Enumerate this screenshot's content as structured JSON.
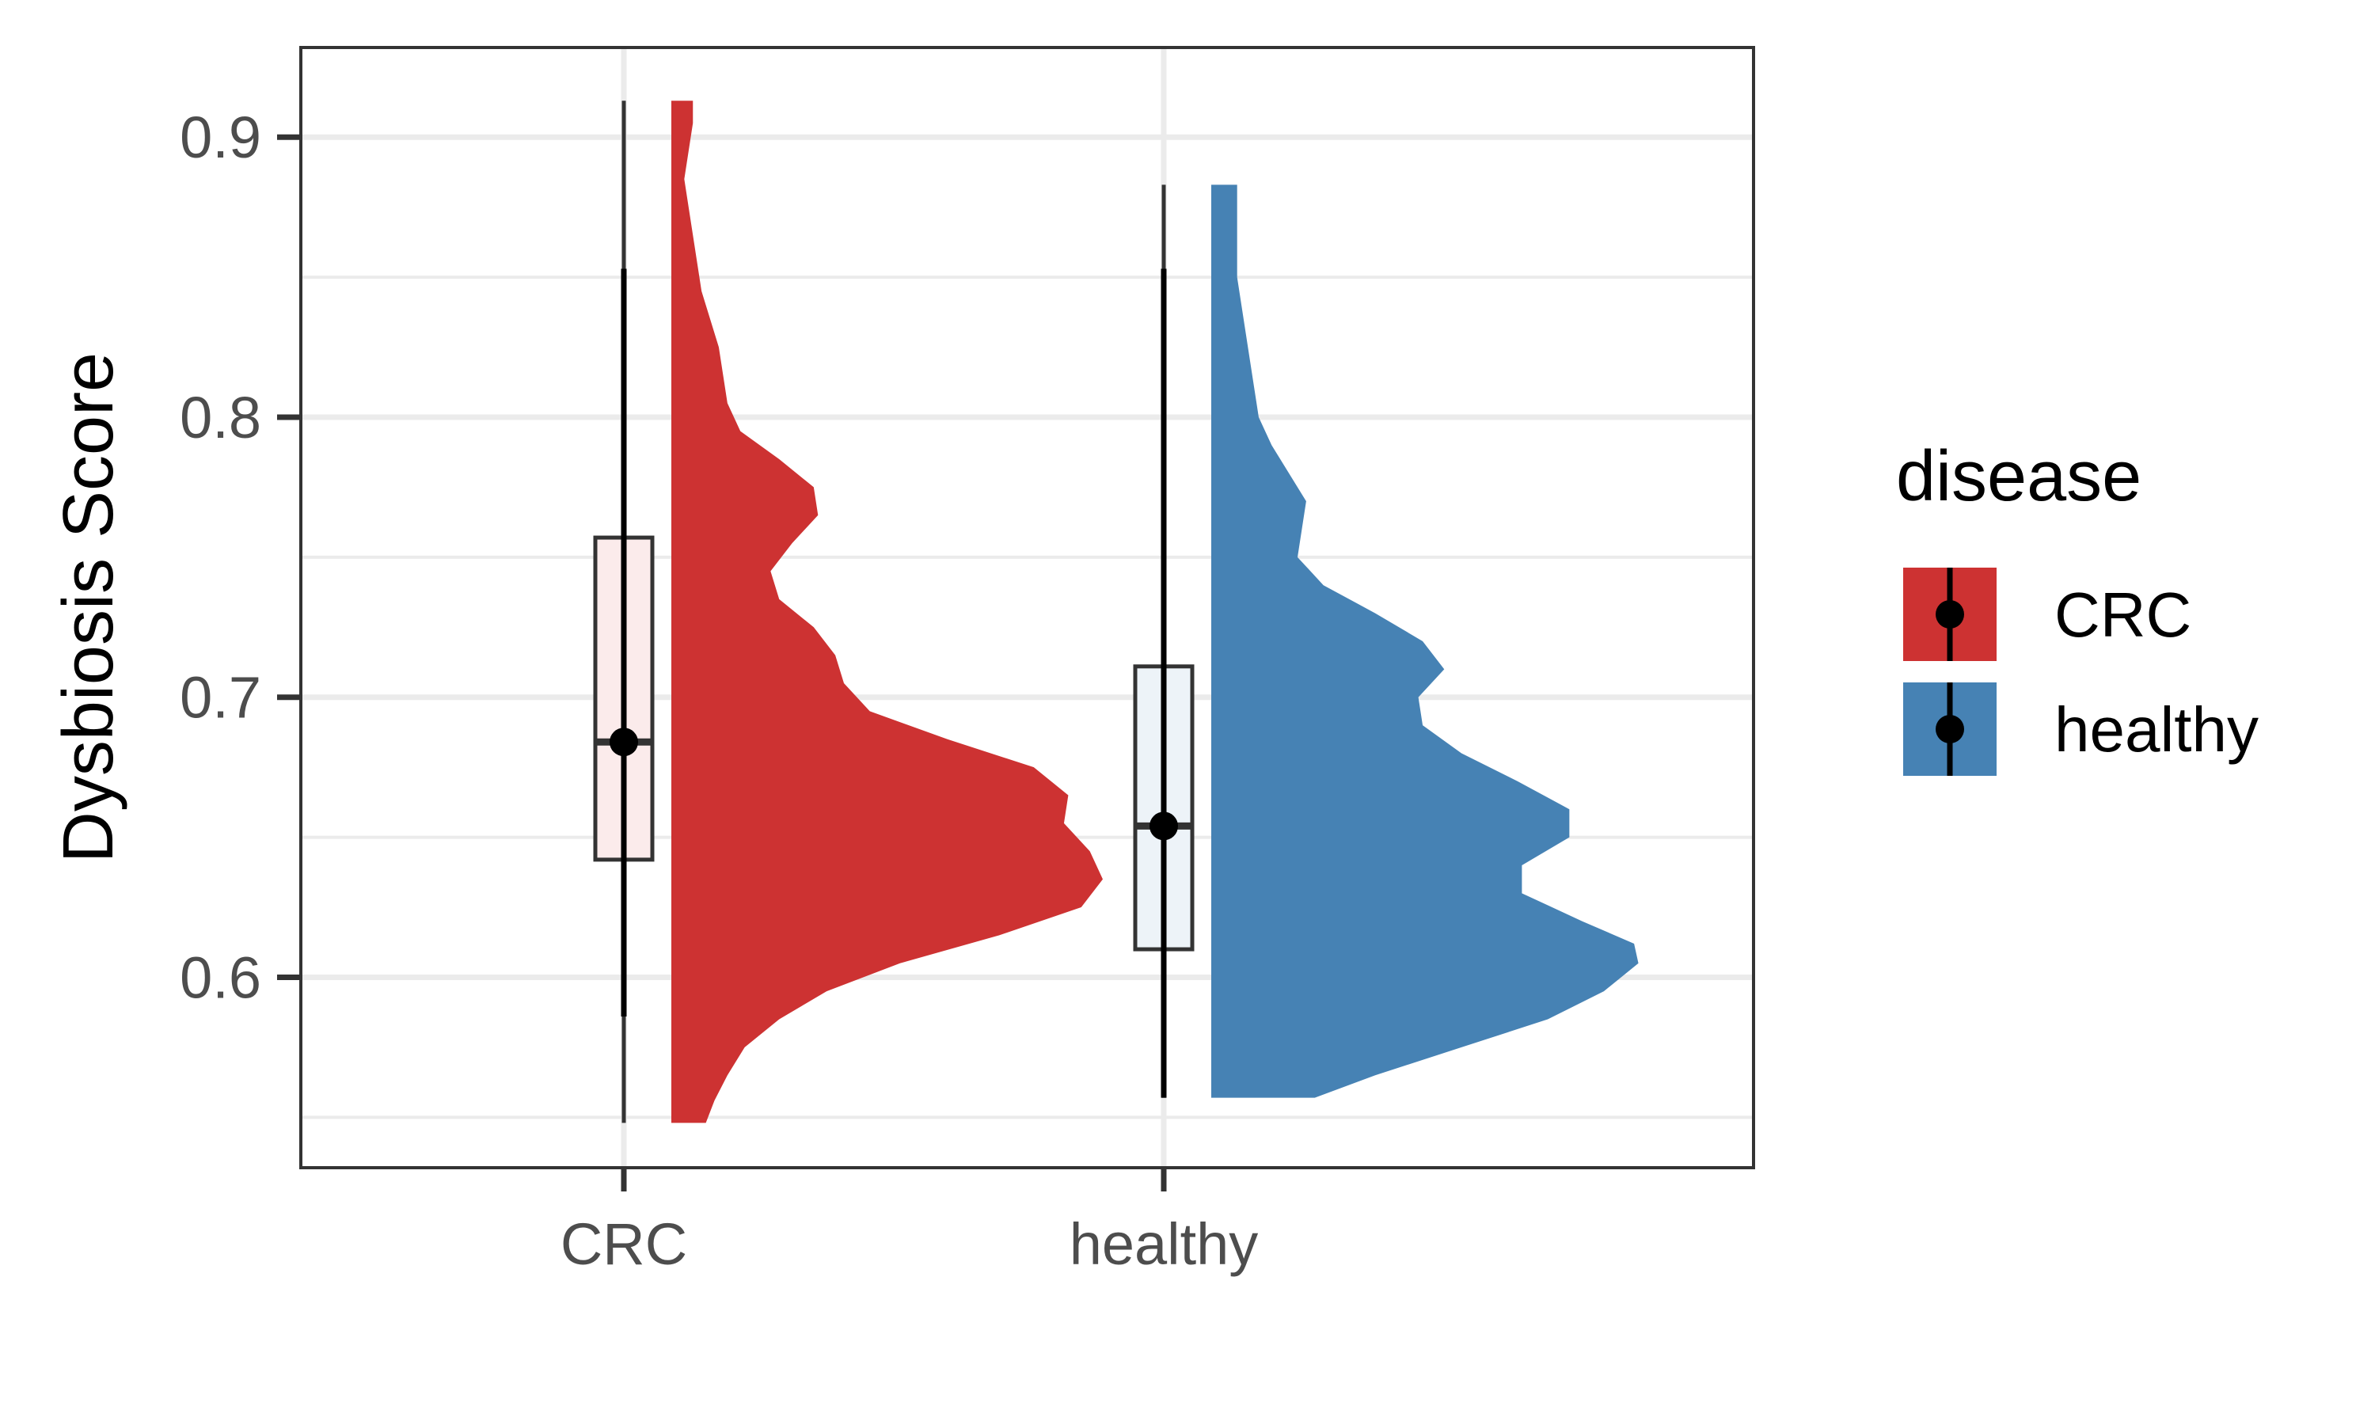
{
  "chart_data": {
    "type": "violin",
    "variant": "raincloud: half-violin density with boxplot and point-range",
    "xlabel": "",
    "ylabel": "Dysbiosis Score",
    "ylim": [
      0.532,
      0.932
    ],
    "yticks": [
      0.6,
      0.7,
      0.8,
      0.9
    ],
    "ytick_labels": [
      "0.6",
      "0.7",
      "0.8",
      "0.9"
    ],
    "categories": [
      "CRC",
      "healthy"
    ],
    "grid": true,
    "legend": {
      "title": "disease",
      "position": "right",
      "items": [
        {
          "label": "CRC",
          "color": "#CD3232"
        },
        {
          "label": "healthy",
          "color": "#4682B4"
        }
      ]
    },
    "series": [
      {
        "name": "CRC",
        "color": "#CD3232",
        "box_fill": "#FBEBEB",
        "min": 0.548,
        "max": 0.913,
        "box": {
          "q1": 0.642,
          "median": 0.684,
          "q3": 0.757,
          "whisker_low": 0.586,
          "whisker_high": 0.775
        },
        "pointrange": {
          "mean": 0.684,
          "low": 0.586,
          "high": 0.853
        },
        "density": [
          [
            0.548,
            0.08
          ],
          [
            0.556,
            0.1
          ],
          [
            0.565,
            0.13
          ],
          [
            0.575,
            0.17
          ],
          [
            0.585,
            0.25
          ],
          [
            0.595,
            0.36
          ],
          [
            0.605,
            0.53
          ],
          [
            0.615,
            0.76
          ],
          [
            0.625,
            0.95
          ],
          [
            0.635,
            1.0
          ],
          [
            0.645,
            0.97
          ],
          [
            0.655,
            0.91
          ],
          [
            0.665,
            0.92
          ],
          [
            0.675,
            0.84
          ],
          [
            0.685,
            0.64
          ],
          [
            0.695,
            0.46
          ],
          [
            0.705,
            0.4
          ],
          [
            0.715,
            0.38
          ],
          [
            0.725,
            0.33
          ],
          [
            0.735,
            0.25
          ],
          [
            0.745,
            0.23
          ],
          [
            0.755,
            0.28
          ],
          [
            0.765,
            0.34
          ],
          [
            0.775,
            0.33
          ],
          [
            0.785,
            0.25
          ],
          [
            0.795,
            0.16
          ],
          [
            0.805,
            0.13
          ],
          [
            0.815,
            0.12
          ],
          [
            0.825,
            0.11
          ],
          [
            0.835,
            0.09
          ],
          [
            0.845,
            0.07
          ],
          [
            0.855,
            0.06
          ],
          [
            0.865,
            0.05
          ],
          [
            0.875,
            0.04
          ],
          [
            0.885,
            0.03
          ],
          [
            0.895,
            0.04
          ],
          [
            0.905,
            0.05
          ],
          [
            0.913,
            0.05
          ]
        ]
      },
      {
        "name": "healthy",
        "color": "#4682B4",
        "box_fill": "#EDF3F8",
        "min": 0.557,
        "max": 0.883,
        "box": {
          "q1": 0.61,
          "median": 0.654,
          "q3": 0.711,
          "whisker_low": 0.56,
          "whisker_high": 0.84
        },
        "pointrange": {
          "mean": 0.654,
          "low": 0.557,
          "high": 0.853
        },
        "density": [
          [
            0.557,
            0.24
          ],
          [
            0.565,
            0.38
          ],
          [
            0.575,
            0.58
          ],
          [
            0.585,
            0.78
          ],
          [
            0.595,
            0.91
          ],
          [
            0.605,
            0.99
          ],
          [
            0.612,
            0.98
          ],
          [
            0.62,
            0.86
          ],
          [
            0.63,
            0.72
          ],
          [
            0.64,
            0.72
          ],
          [
            0.65,
            0.83
          ],
          [
            0.66,
            0.83
          ],
          [
            0.67,
            0.71
          ],
          [
            0.68,
            0.58
          ],
          [
            0.69,
            0.49
          ],
          [
            0.7,
            0.48
          ],
          [
            0.71,
            0.54
          ],
          [
            0.72,
            0.49
          ],
          [
            0.73,
            0.38
          ],
          [
            0.74,
            0.26
          ],
          [
            0.75,
            0.2
          ],
          [
            0.76,
            0.21
          ],
          [
            0.77,
            0.22
          ],
          [
            0.78,
            0.18
          ],
          [
            0.79,
            0.14
          ],
          [
            0.8,
            0.11
          ],
          [
            0.81,
            0.1
          ],
          [
            0.82,
            0.09
          ],
          [
            0.83,
            0.08
          ],
          [
            0.84,
            0.07
          ],
          [
            0.85,
            0.06
          ],
          [
            0.86,
            0.06
          ],
          [
            0.87,
            0.06
          ],
          [
            0.883,
            0.06
          ]
        ]
      }
    ]
  }
}
